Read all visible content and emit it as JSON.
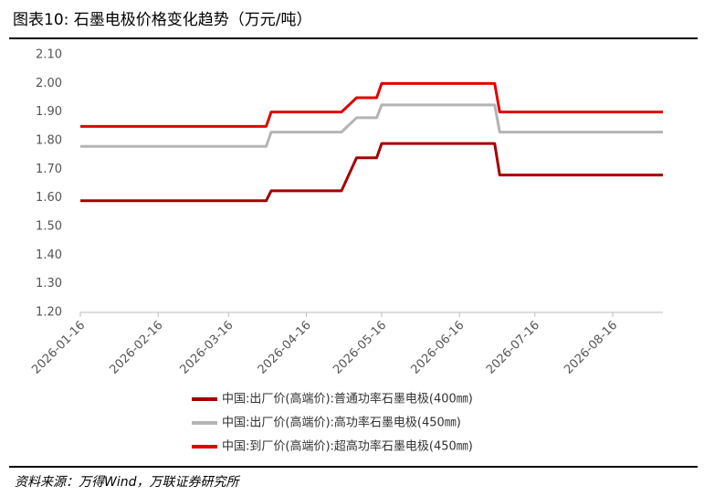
{
  "chart_data": {
    "type": "line",
    "title": "图表10: 石墨电极价格变化趋势（万元/吨）",
    "source": "资料来源：万得Wind，万联证券研究所",
    "x": [
      "2026-01-16",
      "2026-03-31",
      "2026-04-02",
      "2026-04-30",
      "2026-05-06",
      "2026-05-14",
      "2026-05-16",
      "2026-06-30",
      "2026-07-02",
      "2026-09-05"
    ],
    "xlim": [
      "2026-01-16",
      "2026-09-05"
    ],
    "xticks": [
      "2026-01-16",
      "2026-02-16",
      "2026-03-16",
      "2026-04-16",
      "2026-05-16",
      "2026-06-16",
      "2026-07-16",
      "2026-08-16"
    ],
    "ylim": [
      1.2,
      2.1
    ],
    "yticks": [
      {
        "value": 1.2,
        "label": "1.20"
      },
      {
        "value": 1.3,
        "label": "1.30"
      },
      {
        "value": 1.4,
        "label": "1.40"
      },
      {
        "value": 1.5,
        "label": "1.50"
      },
      {
        "value": 1.6,
        "label": "1.60"
      },
      {
        "value": 1.7,
        "label": "1.70"
      },
      {
        "value": 1.8,
        "label": "1.80"
      },
      {
        "value": 1.9,
        "label": "1.90"
      },
      {
        "value": 2.0,
        "label": "2.00"
      },
      {
        "value": 2.1,
        "label": "2.10"
      }
    ],
    "grid": false,
    "legend": "bottom",
    "series": [
      {
        "name": "中国:出厂价(高端价):普通功率石墨电极(400㎜)",
        "color": "#a50000",
        "values": [
          1.59,
          1.59,
          1.625,
          1.625,
          1.74,
          1.74,
          1.79,
          1.79,
          1.68,
          1.68
        ]
      },
      {
        "name": "中国:出厂价(高端价):高功率石墨电极(450㎜)",
        "color": "#b4b4b4",
        "values": [
          1.78,
          1.78,
          1.83,
          1.83,
          1.88,
          1.88,
          1.925,
          1.925,
          1.83,
          1.83
        ]
      },
      {
        "name": "中国:到厂价(高端价):超高功率石墨电极(450㎜)",
        "color": "#e00000",
        "values": [
          1.85,
          1.85,
          1.9,
          1.9,
          1.95,
          1.95,
          2.0,
          2.0,
          1.9,
          1.9
        ]
      }
    ]
  }
}
